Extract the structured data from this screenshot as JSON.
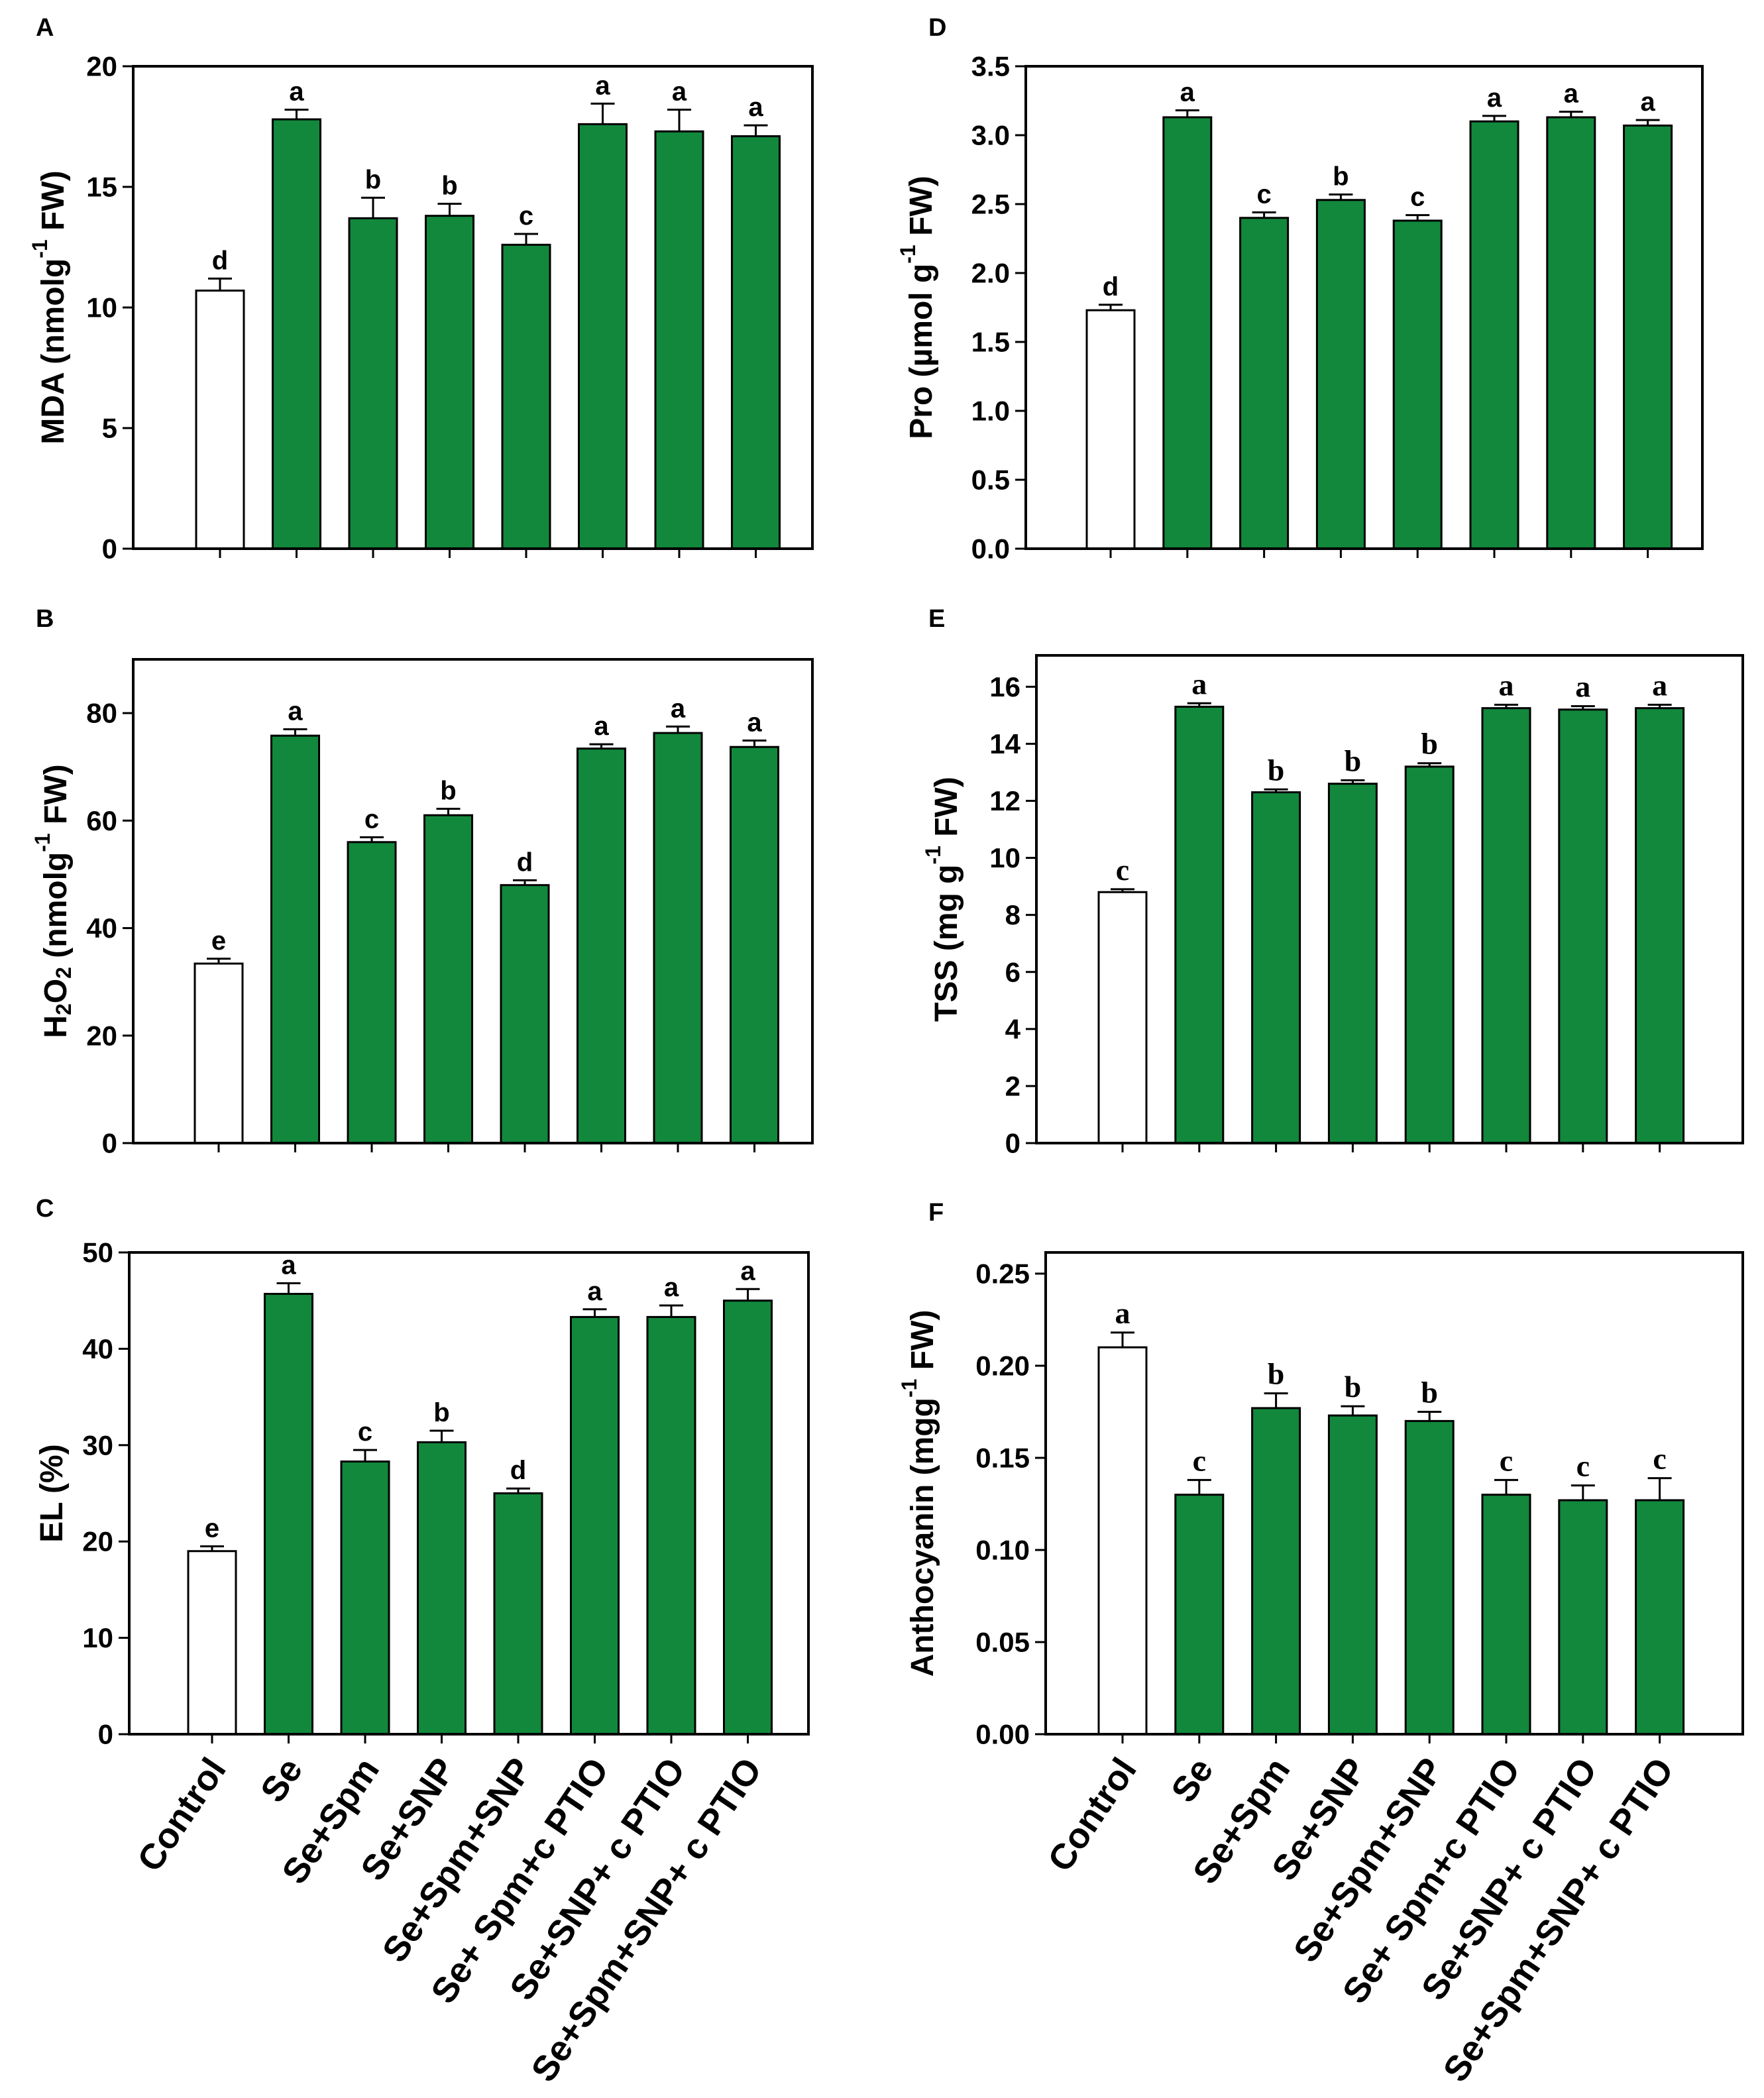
{
  "colors": {
    "control_fill": "#ffffff",
    "treatment_fill": "#12883c",
    "stroke": "#000000"
  },
  "chart_data": [
    {
      "panel": "A",
      "type": "bar",
      "ylabel": [
        {
          "t": "MDA (nmolg"
        },
        {
          "t": "-1",
          "s": "sup"
        },
        {
          "t": " FW)"
        }
      ],
      "yticks": [
        "0",
        "5",
        "10",
        "15",
        "20"
      ],
      "ylim": [
        0,
        20
      ],
      "values": [
        10.7,
        17.8,
        13.7,
        13.8,
        12.6,
        17.6,
        17.3,
        17.1
      ],
      "errors": [
        0.5,
        0.4,
        0.85,
        0.5,
        0.45,
        0.85,
        0.9,
        0.45
      ],
      "letters": [
        "d",
        "a",
        "b",
        "b",
        "c",
        "a",
        "a",
        "a"
      ]
    },
    {
      "panel": "B",
      "type": "bar",
      "ylabel": [
        {
          "t": "H"
        },
        {
          "t": "2",
          "s": "sub"
        },
        {
          "t": "O"
        },
        {
          "t": "2",
          "s": "sub"
        },
        {
          "t": "  (nmolg"
        },
        {
          "t": "-1",
          "s": "sup"
        },
        {
          "t": " FW)"
        }
      ],
      "yticks": [
        "0",
        "20",
        "40",
        "60",
        "80"
      ],
      "ylim": [
        0,
        90
      ],
      "values": [
        33.4,
        75.8,
        56.0,
        61.0,
        48.0,
        73.4,
        76.3,
        73.7
      ],
      "errors": [
        0.9,
        1.2,
        0.9,
        1.2,
        0.9,
        0.8,
        1.2,
        1.2
      ],
      "letters": [
        "e",
        "a",
        "c",
        "b",
        "d",
        "a",
        "a",
        "a"
      ]
    },
    {
      "panel": "C",
      "type": "bar",
      "ylabel": [
        {
          "t": "EL (%)"
        }
      ],
      "yticks": [
        "0",
        "10",
        "20",
        "30",
        "40",
        "50"
      ],
      "ylim": [
        0,
        50
      ],
      "categories": [
        "Control",
        "Se",
        "Se+Spm",
        "Se+SNP",
        "Se+Spm+SNP",
        "Se+ Spm+c PTIO",
        "Se+SNP+ c PTIO",
        "Se+Spm+SNP+ c PTIO"
      ],
      "values": [
        19.0,
        45.7,
        28.3,
        30.3,
        25.0,
        43.3,
        43.3,
        45.0
      ],
      "errors": [
        0.5,
        1.1,
        1.2,
        1.2,
        0.5,
        0.8,
        1.2,
        1.2
      ],
      "letters": [
        "e",
        "a",
        "c",
        "b",
        "d",
        "a",
        "a",
        "a"
      ]
    },
    {
      "panel": "D",
      "type": "bar",
      "ylabel": [
        {
          "t": "Pro (µmol g"
        },
        {
          "t": "-1",
          "s": "sup"
        },
        {
          "t": " FW)"
        }
      ],
      "yticks": [
        "0.0",
        "0.5",
        "1.0",
        "1.5",
        "2.0",
        "2.5",
        "3.0",
        "3.5"
      ],
      "ylim": [
        0,
        3.5
      ],
      "values": [
        1.73,
        3.13,
        2.4,
        2.53,
        2.38,
        3.1,
        3.13,
        3.07
      ],
      "errors": [
        0.04,
        0.05,
        0.04,
        0.04,
        0.04,
        0.04,
        0.04,
        0.04
      ],
      "letters": [
        "d",
        "a",
        "c",
        "b",
        "c",
        "a",
        "a",
        "a"
      ]
    },
    {
      "panel": "E",
      "type": "bar",
      "ylabel": [
        {
          "t": "TSS (mg g"
        },
        {
          "t": "-1",
          "s": "sup"
        },
        {
          "t": " FW)"
        }
      ],
      "yticks": [
        "0",
        "2",
        "4",
        "6",
        "8",
        "10",
        "12",
        "14",
        "16"
      ],
      "ylim": [
        0,
        17.1
      ],
      "values": [
        8.8,
        15.3,
        12.3,
        12.6,
        13.2,
        15.25,
        15.2,
        15.25
      ],
      "errors": [
        0.1,
        0.12,
        0.1,
        0.12,
        0.12,
        0.12,
        0.12,
        0.12
      ],
      "letters": [
        "c",
        "a",
        "b",
        "b",
        "b",
        "a",
        "a",
        "a"
      ]
    },
    {
      "panel": "F",
      "type": "bar",
      "ylabel": [
        {
          "t": "Anthocyanin (mgg"
        },
        {
          "t": "-1",
          "s": "sup"
        },
        {
          "t": " FW)"
        }
      ],
      "yticks": [
        "0.00",
        "0.05",
        "0.10",
        "0.15",
        "0.20",
        "0.25"
      ],
      "ylim": [
        0,
        0.2615
      ],
      "categories": [
        "Control",
        "Se",
        "Se+Spm",
        "Se+SNP",
        "Se+Spm+SNP",
        "Se+ Spm+c PTIO",
        "Se+SNP+ c PTIO",
        "Se+Spm+SNP+ c PTIO"
      ],
      "values": [
        0.21,
        0.13,
        0.177,
        0.173,
        0.17,
        0.13,
        0.127,
        0.127
      ],
      "errors": [
        0.008,
        0.008,
        0.008,
        0.005,
        0.005,
        0.008,
        0.008,
        0.012
      ],
      "letters": [
        "a",
        "c",
        "b",
        "b",
        "b",
        "c",
        "c",
        "c"
      ]
    }
  ]
}
